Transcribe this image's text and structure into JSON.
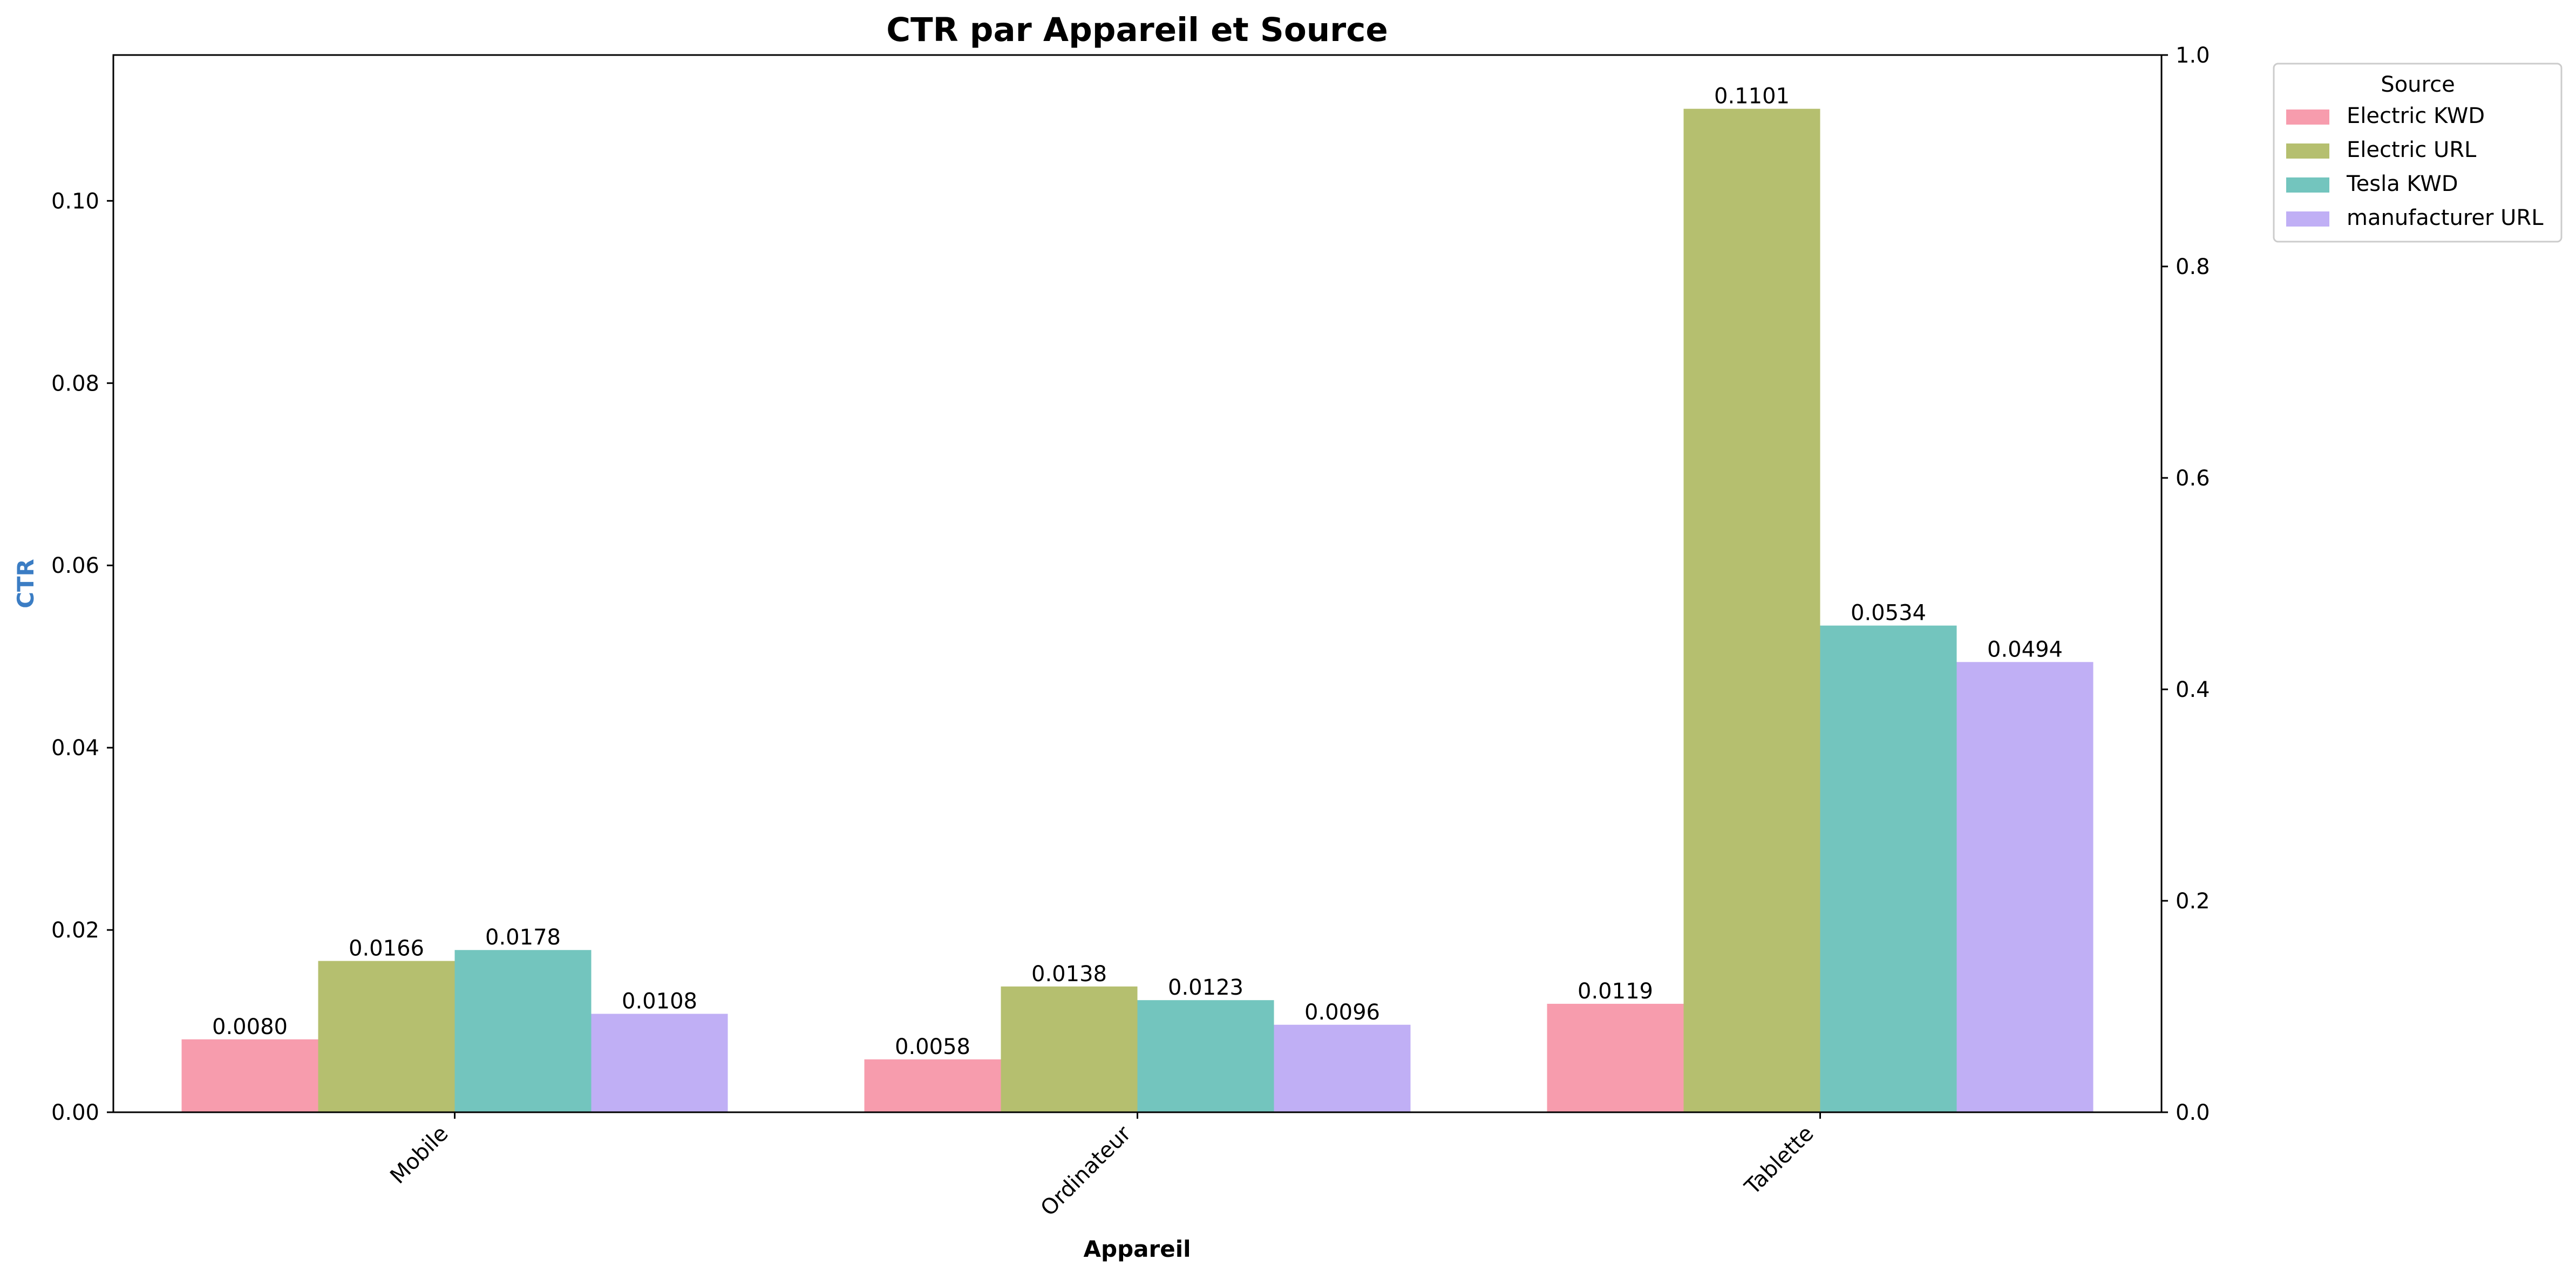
{
  "chart_data": {
    "type": "bar",
    "title": "CTR par Appareil et Source",
    "xlabel": "Appareil",
    "ylabel": "CTR",
    "ylabel_color": "#3b7dc4",
    "categories": [
      "Mobile",
      "Ordinateur",
      "Tablette"
    ],
    "ylim": [
      0,
      0.116
    ],
    "yticks": [
      "0.00",
      "0.02",
      "0.04",
      "0.06",
      "0.08",
      "0.10"
    ],
    "y2lim": [
      0,
      1.0
    ],
    "y2ticks": [
      "0.0",
      "0.2",
      "0.4",
      "0.6",
      "0.8",
      "1.0"
    ],
    "legend_title": "Source",
    "legend_position": "outside upper right",
    "grid": false,
    "series": [
      {
        "name": "Electric KWD",
        "color": "#f79cad",
        "values": [
          0.008,
          0.0058,
          0.0119
        ],
        "labels": [
          "0.0080",
          "0.0058",
          "0.0119"
        ]
      },
      {
        "name": "Electric URL",
        "color": "#b5bf6f",
        "values": [
          0.0166,
          0.0138,
          0.1101
        ],
        "labels": [
          "0.0166",
          "0.0138",
          "0.1101"
        ]
      },
      {
        "name": "Tesla KWD",
        "color": "#73c5be",
        "values": [
          0.0178,
          0.0123,
          0.0534
        ],
        "labels": [
          "0.0178",
          "0.0123",
          "0.0534"
        ]
      },
      {
        "name": "manufacturer URL",
        "color": "#c0aff5",
        "values": [
          0.0108,
          0.0096,
          0.0494
        ],
        "labels": [
          "0.0108",
          "0.0096",
          "0.0494"
        ]
      }
    ]
  }
}
